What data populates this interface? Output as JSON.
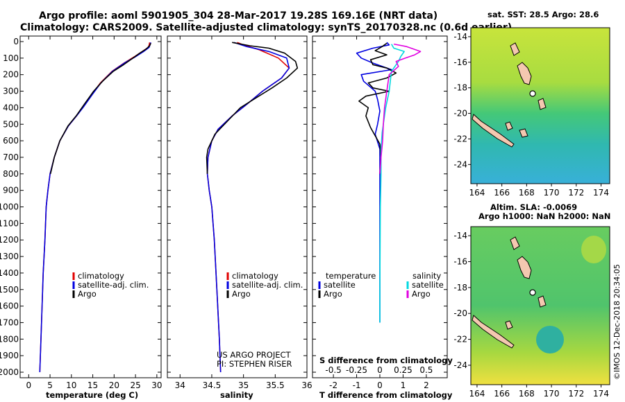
{
  "titles": {
    "line1": "Argo profile: aoml 5901905_304 28-Mar-2017 19.28S 169.16E (NRT data)",
    "line2": "Climatology: CARS2009. Satellite-adjusted climatology: synTS_20170328.nc (0.6d earlier)"
  },
  "credits": {
    "project": "US ARGO PROJECT",
    "pi": "PI: STEPHEN RISER",
    "imos": "©IMOS 12-Dec-2018 20:34:05"
  },
  "colors": {
    "climatology": "#e00000",
    "satellite": "#0000e0",
    "argo": "#000000",
    "salinity_sat": "#00d8e0",
    "salinity_argo": "#e000e0"
  },
  "chart_data": [
    {
      "type": "line",
      "panel": "temperature",
      "xlabel": "temperature (deg C)",
      "xlim": [
        -2,
        31
      ],
      "ylim": [
        2050,
        0
      ],
      "xticks": [
        0,
        5,
        10,
        15,
        20,
        25,
        30
      ],
      "yticks": [
        0,
        100,
        200,
        300,
        400,
        500,
        600,
        700,
        800,
        900,
        1000,
        1100,
        1200,
        1300,
        1400,
        1500,
        1600,
        1700,
        1800,
        1900,
        2000
      ],
      "legend": [
        "climatology",
        "satellite-adj. clim.",
        "Argo"
      ],
      "series": [
        {
          "name": "climatology",
          "color": "#e00000",
          "points": [
            [
              28.3,
              5
            ],
            [
              28.2,
              20
            ],
            [
              28.0,
              35
            ],
            [
              26.6,
              60
            ],
            [
              24.8,
              90
            ],
            [
              22.3,
              130
            ],
            [
              19.5,
              180
            ],
            [
              16.8,
              250
            ],
            [
              14.8,
              320
            ],
            [
              12.6,
              400
            ],
            [
              11.2,
              450
            ],
            [
              9.3,
              510
            ],
            [
              7.3,
              600
            ],
            [
              6.0,
              700
            ],
            [
              5.0,
              800
            ],
            [
              4.5,
              900
            ],
            [
              4.1,
              1000
            ],
            [
              3.8,
              1200
            ],
            [
              3.4,
              1400
            ],
            [
              3.0,
              1700
            ],
            [
              2.6,
              2000
            ]
          ]
        },
        {
          "name": "satellite-adj. clim.",
          "color": "#0000e0",
          "points": [
            [
              28.6,
              5
            ],
            [
              28.4,
              20
            ],
            [
              28.2,
              35
            ],
            [
              26.9,
              60
            ],
            [
              25.1,
              90
            ],
            [
              22.4,
              130
            ],
            [
              19.6,
              180
            ],
            [
              16.9,
              250
            ],
            [
              14.9,
              320
            ],
            [
              12.7,
              400
            ],
            [
              11.2,
              450
            ],
            [
              9.3,
              510
            ],
            [
              7.3,
              600
            ],
            [
              6.0,
              700
            ],
            [
              5.0,
              800
            ],
            [
              4.5,
              900
            ],
            [
              4.1,
              1000
            ],
            [
              3.8,
              1200
            ],
            [
              3.4,
              1400
            ],
            [
              3.0,
              1700
            ],
            [
              2.6,
              2000
            ]
          ]
        },
        {
          "name": "Argo",
          "color": "#000000",
          "points": [
            [
              28.6,
              10
            ],
            [
              28.3,
              25
            ],
            [
              27.5,
              45
            ],
            [
              26.0,
              70
            ],
            [
              24.4,
              100
            ],
            [
              22.2,
              140
            ],
            [
              19.8,
              180
            ],
            [
              17.3,
              240
            ],
            [
              15.2,
              300
            ],
            [
              13.0,
              380
            ],
            [
              11.1,
              450
            ],
            [
              9.2,
              510
            ],
            [
              7.3,
              600
            ],
            [
              6.0,
              700
            ],
            [
              5.1,
              800
            ]
          ]
        }
      ]
    },
    {
      "type": "line",
      "panel": "salinity",
      "xlabel": "salinity",
      "xlim": [
        33.8,
        36.0
      ],
      "ylim": [
        2050,
        0
      ],
      "xticks": [
        34,
        34.5,
        35,
        35.5,
        36
      ],
      "legend": [
        "climatology",
        "satellite-adj. clim.",
        "Argo"
      ],
      "series": [
        {
          "name": "climatology",
          "color": "#e00000",
          "points": [
            [
              34.9,
              5
            ],
            [
              35.0,
              20
            ],
            [
              35.25,
              50
            ],
            [
              35.55,
              100
            ],
            [
              35.72,
              160
            ],
            [
              35.6,
              220
            ],
            [
              35.3,
              300
            ],
            [
              35.05,
              380
            ],
            [
              34.82,
              450
            ],
            [
              34.6,
              530
            ],
            [
              34.5,
              600
            ],
            [
              34.44,
              700
            ],
            [
              34.43,
              800
            ],
            [
              34.46,
              900
            ],
            [
              34.5,
              1000
            ],
            [
              34.54,
              1200
            ],
            [
              34.58,
              1500
            ],
            [
              34.62,
              1800
            ],
            [
              34.64,
              2000
            ]
          ]
        },
        {
          "name": "satellite-adj. clim.",
          "color": "#0000e0",
          "points": [
            [
              34.85,
              5
            ],
            [
              35.05,
              30
            ],
            [
              35.4,
              60
            ],
            [
              35.68,
              100
            ],
            [
              35.72,
              160
            ],
            [
              35.6,
              220
            ],
            [
              35.3,
              300
            ],
            [
              35.05,
              380
            ],
            [
              34.82,
              450
            ],
            [
              34.6,
              530
            ],
            [
              34.5,
              600
            ],
            [
              34.44,
              700
            ],
            [
              34.43,
              800
            ],
            [
              34.46,
              900
            ],
            [
              34.5,
              1000
            ],
            [
              34.54,
              1200
            ],
            [
              34.58,
              1500
            ],
            [
              34.62,
              1800
            ],
            [
              34.64,
              2000
            ]
          ]
        },
        {
          "name": "Argo",
          "color": "#000000",
          "points": [
            [
              34.82,
              5
            ],
            [
              35.1,
              25
            ],
            [
              35.4,
              40
            ],
            [
              35.65,
              70
            ],
            [
              35.82,
              120
            ],
            [
              35.85,
              160
            ],
            [
              35.68,
              220
            ],
            [
              35.45,
              280
            ],
            [
              35.2,
              340
            ],
            [
              34.95,
              400
            ],
            [
              34.75,
              480
            ],
            [
              34.55,
              560
            ],
            [
              34.44,
              650
            ],
            [
              34.42,
              700
            ],
            [
              34.43,
              800
            ]
          ]
        }
      ]
    },
    {
      "type": "line",
      "panel": "difference",
      "xlabel": "T difference from climatology",
      "xlabel_top": "S difference from climatology",
      "xlim": [
        -2.9,
        2.9
      ],
      "ylim": [
        2050,
        0
      ],
      "xticks": [
        -2,
        -1,
        0,
        1,
        2
      ],
      "xticks_s": [
        "-0.5",
        "-0.25",
        "0",
        "0.25",
        "0.5"
      ],
      "legend_t": {
        "heading": "temperature",
        "items": [
          "satellite",
          "Argo"
        ]
      },
      "legend_s": {
        "heading": "salinity",
        "items": [
          "satellite",
          "Argo"
        ]
      },
      "series": [
        {
          "name": "T satellite",
          "color": "#0000e0",
          "points": [
            [
              0.3,
              5
            ],
            [
              0.4,
              20
            ],
            [
              -0.3,
              40
            ],
            [
              -1.0,
              70
            ],
            [
              -0.8,
              100
            ],
            [
              -0.3,
              130
            ],
            [
              0.5,
              170
            ],
            [
              -0.8,
              200
            ],
            [
              -0.7,
              240
            ],
            [
              -0.2,
              300
            ],
            [
              -0.1,
              350
            ],
            [
              0.0,
              420
            ],
            [
              -0.1,
              500
            ],
            [
              -0.2,
              560
            ],
            [
              0.0,
              650
            ],
            [
              0.0,
              800
            ],
            [
              0.0,
              1000
            ],
            [
              0.0,
              1500
            ],
            [
              0.0,
              1700
            ]
          ]
        },
        {
          "name": "T Argo",
          "color": "#000000",
          "points": [
            [
              0.3,
              10
            ],
            [
              0.1,
              30
            ],
            [
              -0.2,
              55
            ],
            [
              0.3,
              80
            ],
            [
              -0.4,
              110
            ],
            [
              -0.3,
              140
            ],
            [
              0.3,
              160
            ],
            [
              0.7,
              190
            ],
            [
              0.3,
              220
            ],
            [
              -0.5,
              250
            ],
            [
              -0.3,
              280
            ],
            [
              0.4,
              300
            ],
            [
              -0.6,
              330
            ],
            [
              -0.9,
              360
            ],
            [
              -0.5,
              400
            ],
            [
              -0.6,
              450
            ],
            [
              -0.4,
              520
            ],
            [
              0.0,
              620
            ],
            [
              0.05,
              700
            ],
            [
              0.0,
              800
            ]
          ]
        },
        {
          "name": "S satellite",
          "color": "#00d8e0",
          "points": [
            [
              0.5,
              15
            ],
            [
              0.6,
              40
            ],
            [
              1.05,
              60
            ],
            [
              0.9,
              90
            ],
            [
              0.8,
              120
            ],
            [
              0.5,
              180
            ],
            [
              0.4,
              300
            ],
            [
              0.25,
              400
            ],
            [
              0.2,
              450
            ],
            [
              0.1,
              550
            ],
            [
              0.05,
              650
            ],
            [
              0.05,
              800
            ],
            [
              0.02,
              1000
            ],
            [
              0.0,
              1500
            ],
            [
              0.0,
              1700
            ]
          ]
        },
        {
          "name": "S Argo",
          "color": "#e000e0",
          "points": [
            [
              0.6,
              15
            ],
            [
              1.15,
              30
            ],
            [
              1.75,
              60
            ],
            [
              1.5,
              80
            ],
            [
              1.1,
              100
            ],
            [
              0.7,
              120
            ],
            [
              0.8,
              150
            ],
            [
              0.4,
              200
            ],
            [
              0.3,
              300
            ],
            [
              0.2,
              400
            ],
            [
              0.15,
              500
            ],
            [
              0.12,
              600
            ],
            [
              0.05,
              700
            ],
            [
              0.0,
              800
            ]
          ]
        }
      ]
    },
    {
      "type": "heatmap",
      "panel": "sst_map",
      "title": "sat. SST: 28.5 Argo: 28.6",
      "xticks": [
        164,
        166,
        168,
        170,
        172,
        174
      ],
      "yticks": [
        -14,
        -16,
        -18,
        -20,
        -22,
        -24
      ],
      "xlim": [
        163.5,
        174.7
      ],
      "ylim": [
        -25.5,
        -13.3
      ]
    },
    {
      "type": "heatmap",
      "panel": "sla_map",
      "title_line1": "Altim. SLA: -0.0069",
      "title_line2": "Argo h1000: NaN h2000: NaN",
      "xticks": [
        164,
        166,
        168,
        170,
        172,
        174
      ],
      "yticks": [
        -14,
        -16,
        -18,
        -20,
        -22,
        -24
      ],
      "xlim": [
        163.5,
        174.7
      ],
      "ylim": [
        -25.5,
        -13.3
      ]
    }
  ]
}
